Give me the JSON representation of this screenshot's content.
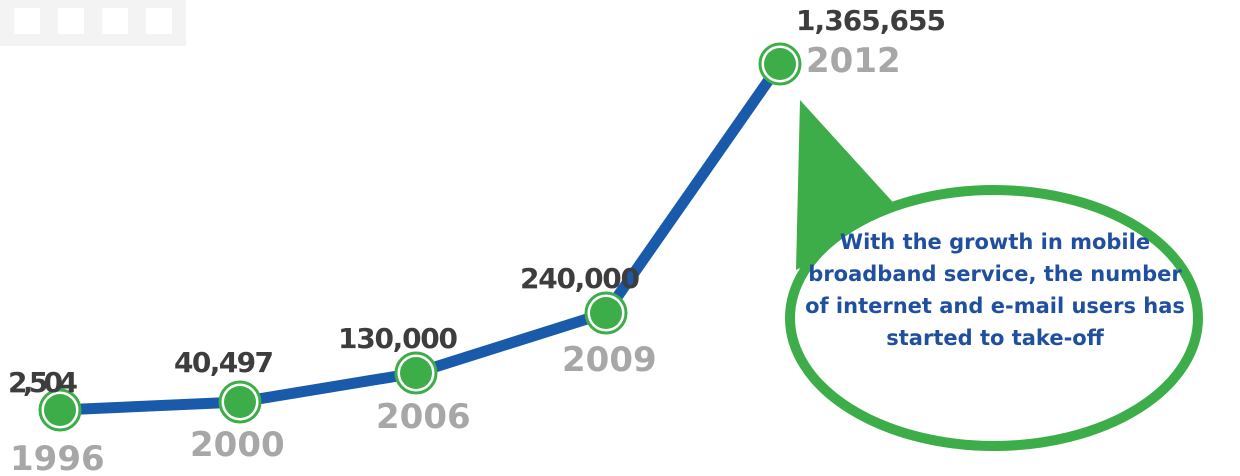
{
  "chart_data": {
    "type": "line",
    "x": [
      "1996",
      "2000",
      "2006",
      "2009",
      "2012"
    ],
    "values": [
      2504,
      40497,
      130000,
      240000,
      1365655
    ],
    "value_labels": [
      "2,504",
      "40,497",
      "130,000",
      "240,000",
      "1,365,655"
    ],
    "grid": false,
    "legend": "none",
    "colors": {
      "line": "#1a5aab",
      "marker": "#3dad49",
      "value_text": "#3d3d3d",
      "year_text": "#a7a7a7",
      "callout_fill": "#ffffff",
      "callout_border": "#3dad49",
      "callout_text": "#1f4f9e"
    }
  },
  "callout": {
    "text": "With the growth in mobile broadband service, the number of internet and e-mail users has started to take-off"
  }
}
